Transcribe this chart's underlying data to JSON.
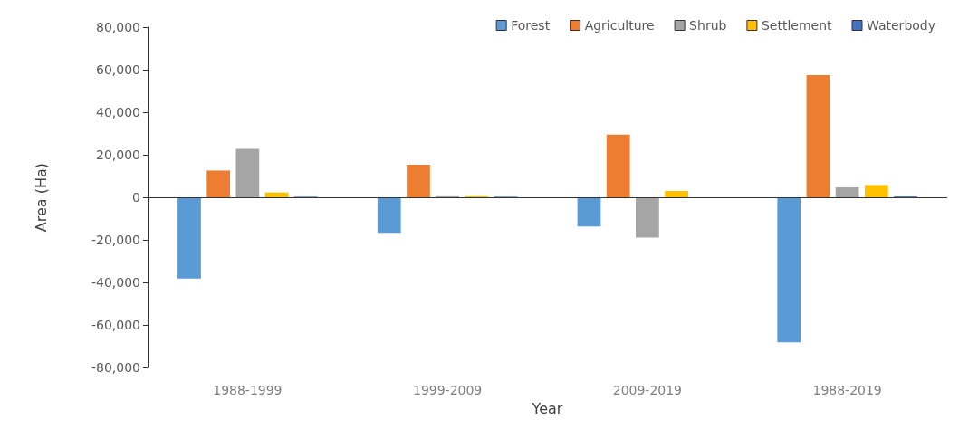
{
  "chart_data": {
    "type": "bar",
    "xlabel": "Year",
    "ylabel": "Area (Ha)",
    "categories": [
      "1988-1999",
      "1999-2009",
      "2009-2019",
      "1988-2019"
    ],
    "series": [
      {
        "name": "Forest",
        "color": "#5b9bd5",
        "values": [
          -38200,
          -16700,
          -13700,
          -68200
        ]
      },
      {
        "name": "Agriculture",
        "color": "#ed7d31",
        "values": [
          12600,
          15300,
          29500,
          57400
        ]
      },
      {
        "name": "Shrub",
        "color": "#a5a5a5",
        "values": [
          22800,
          500,
          -18900,
          4700
        ]
      },
      {
        "name": "Settlement",
        "color": "#ffc000",
        "values": [
          2300,
          500,
          3000,
          5800
        ]
      },
      {
        "name": "Waterbody",
        "color": "#4472c4",
        "values": [
          300,
          300,
          null,
          400
        ]
      }
    ],
    "ylim": [
      -80000,
      80000
    ],
    "yticks": [
      {
        "value": -80000,
        "label": "-80,000"
      },
      {
        "value": -60000,
        "label": "-60,000"
      },
      {
        "value": -40000,
        "label": "-40,000"
      },
      {
        "value": -20000,
        "label": "-20,000"
      },
      {
        "value": 0,
        "label": "0"
      },
      {
        "value": 20000,
        "label": "20,000"
      },
      {
        "value": 40000,
        "label": "40,000"
      },
      {
        "value": 60000,
        "label": "60,000"
      },
      {
        "value": 80000,
        "label": "80,000"
      }
    ],
    "ref_lines": [
      {
        "axis": "y",
        "value": 0,
        "color": "#333333"
      }
    ],
    "grid": false,
    "legend": "top right"
  }
}
